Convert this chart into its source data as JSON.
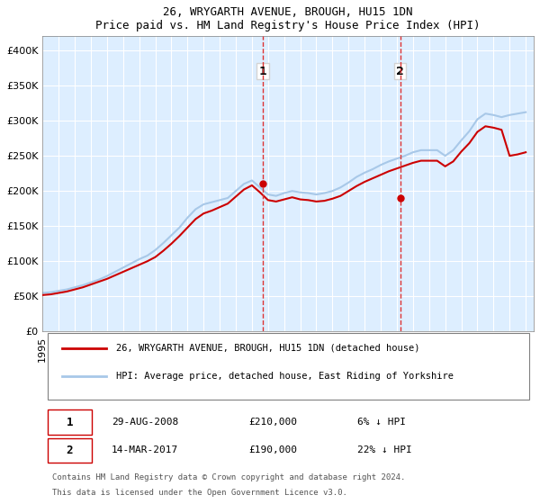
{
  "title": "26, WRYGARTH AVENUE, BROUGH, HU15 1DN",
  "subtitle": "Price paid vs. HM Land Registry's House Price Index (HPI)",
  "ylabel_ticks": [
    "£0",
    "£50K",
    "£100K",
    "£150K",
    "£200K",
    "£250K",
    "£300K",
    "£350K",
    "£400K"
  ],
  "ytick_values": [
    0,
    50000,
    100000,
    150000,
    200000,
    250000,
    300000,
    350000,
    400000
  ],
  "ylim": [
    0,
    420000
  ],
  "xlim_start": 1995.0,
  "xlim_end": 2025.5,
  "transaction1_date": 2008.66,
  "transaction1_price": 210000,
  "transaction1_label": "1",
  "transaction2_date": 2017.2,
  "transaction2_price": 190000,
  "transaction2_label": "2",
  "hpi_color": "#a8c8e8",
  "property_color": "#cc0000",
  "dashed_line_color": "#dd3333",
  "background_color": "#ddeeff",
  "plot_background": "#ddeeff",
  "legend_label_property": "26, WRYGARTH AVENUE, BROUGH, HU15 1DN (detached house)",
  "legend_label_hpi": "HPI: Average price, detached house, East Riding of Yorkshire",
  "table_row1": [
    "1",
    "29-AUG-2008",
    "£210,000",
    "6% ↓ HPI"
  ],
  "table_row2": [
    "2",
    "14-MAR-2017",
    "£190,000",
    "22% ↓ HPI"
  ],
  "footnote1": "Contains HM Land Registry data © Crown copyright and database right 2024.",
  "footnote2": "This data is licensed under the Open Government Licence v3.0.",
  "hpi_years": [
    1995,
    1995.5,
    1996,
    1996.5,
    1997,
    1997.5,
    1998,
    1998.5,
    1999,
    1999.5,
    2000,
    2000.5,
    2001,
    2001.5,
    2002,
    2002.5,
    2003,
    2003.5,
    2004,
    2004.5,
    2005,
    2005.5,
    2006,
    2006.5,
    2007,
    2007.5,
    2008,
    2008.5,
    2009,
    2009.5,
    2010,
    2010.5,
    2011,
    2011.5,
    2012,
    2012.5,
    2013,
    2013.5,
    2014,
    2014.5,
    2015,
    2015.5,
    2016,
    2016.5,
    2017,
    2017.5,
    2018,
    2018.5,
    2019,
    2019.5,
    2020,
    2020.5,
    2021,
    2021.5,
    2022,
    2022.5,
    2023,
    2023.5,
    2024,
    2024.5,
    2025
  ],
  "hpi_values": [
    55000,
    56000,
    58000,
    60000,
    63000,
    66000,
    70000,
    74000,
    79000,
    85000,
    91000,
    97000,
    103000,
    108000,
    116000,
    126000,
    137000,
    148000,
    162000,
    174000,
    181000,
    184000,
    187000,
    190000,
    200000,
    210000,
    215000,
    205000,
    195000,
    193000,
    197000,
    200000,
    198000,
    197000,
    195000,
    197000,
    200000,
    205000,
    212000,
    220000,
    226000,
    231000,
    237000,
    242000,
    246000,
    250000,
    255000,
    258000,
    258000,
    258000,
    250000,
    258000,
    272000,
    285000,
    302000,
    310000,
    308000,
    305000,
    308000,
    310000,
    312000
  ],
  "prop_years": [
    1995,
    1995.5,
    1996,
    1996.5,
    1997,
    1997.5,
    1998,
    1998.5,
    1999,
    1999.5,
    2000,
    2000.5,
    2001,
    2001.5,
    2002,
    2002.5,
    2003,
    2003.5,
    2004,
    2004.5,
    2005,
    2005.5,
    2006,
    2006.5,
    2007,
    2007.5,
    2008,
    2008.5,
    2009,
    2009.5,
    2010,
    2010.5,
    2011,
    2011.5,
    2012,
    2012.5,
    2013,
    2013.5,
    2014,
    2014.5,
    2015,
    2015.5,
    2016,
    2016.5,
    2017,
    2017.5,
    2018,
    2018.5,
    2019,
    2019.5,
    2020,
    2020.5,
    2021,
    2021.5,
    2022,
    2022.5,
    2023,
    2023.5,
    2024,
    2024.5,
    2025
  ],
  "prop_values": [
    52000,
    53000,
    55000,
    57000,
    60000,
    63000,
    67000,
    71000,
    75000,
    80000,
    85000,
    90000,
    95000,
    100000,
    106000,
    115000,
    125000,
    136000,
    148000,
    160000,
    168000,
    172000,
    177000,
    182000,
    192000,
    202000,
    208000,
    198000,
    187000,
    185000,
    188000,
    191000,
    188000,
    187000,
    185000,
    186000,
    189000,
    193000,
    200000,
    207000,
    213000,
    218000,
    223000,
    228000,
    232000,
    236000,
    240000,
    243000,
    243000,
    243000,
    235000,
    242000,
    256000,
    268000,
    284000,
    292000,
    290000,
    287000,
    250000,
    252000,
    255000
  ]
}
